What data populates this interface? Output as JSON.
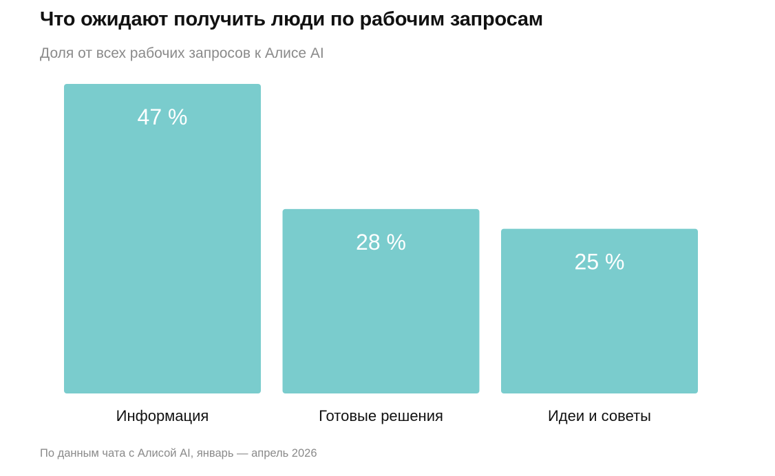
{
  "header": {
    "title": "Что ожидают получить люди по рабочим запросам",
    "subtitle": "Доля от всех рабочих запросов к Алисе AI"
  },
  "footer": {
    "source": "По данным чата с Алисой AI, январь — апрель 2026"
  },
  "colors": {
    "bar": "#7acccd",
    "value_label": "#ffffff",
    "category_label": "#111111"
  },
  "chart_data": {
    "type": "bar",
    "title": "Что ожидают получить люди по рабочим запросам",
    "subtitle": "Доля от всех рабочих запросов к Алисе AI",
    "categories": [
      "Информация",
      "Готовые решения",
      "Идеи и советы"
    ],
    "values": [
      47,
      28,
      25
    ],
    "value_labels": [
      "47 %",
      "28 %",
      "25 %"
    ],
    "unit": "%",
    "ylim": [
      0,
      47
    ],
    "grid": false,
    "legend": "none"
  }
}
